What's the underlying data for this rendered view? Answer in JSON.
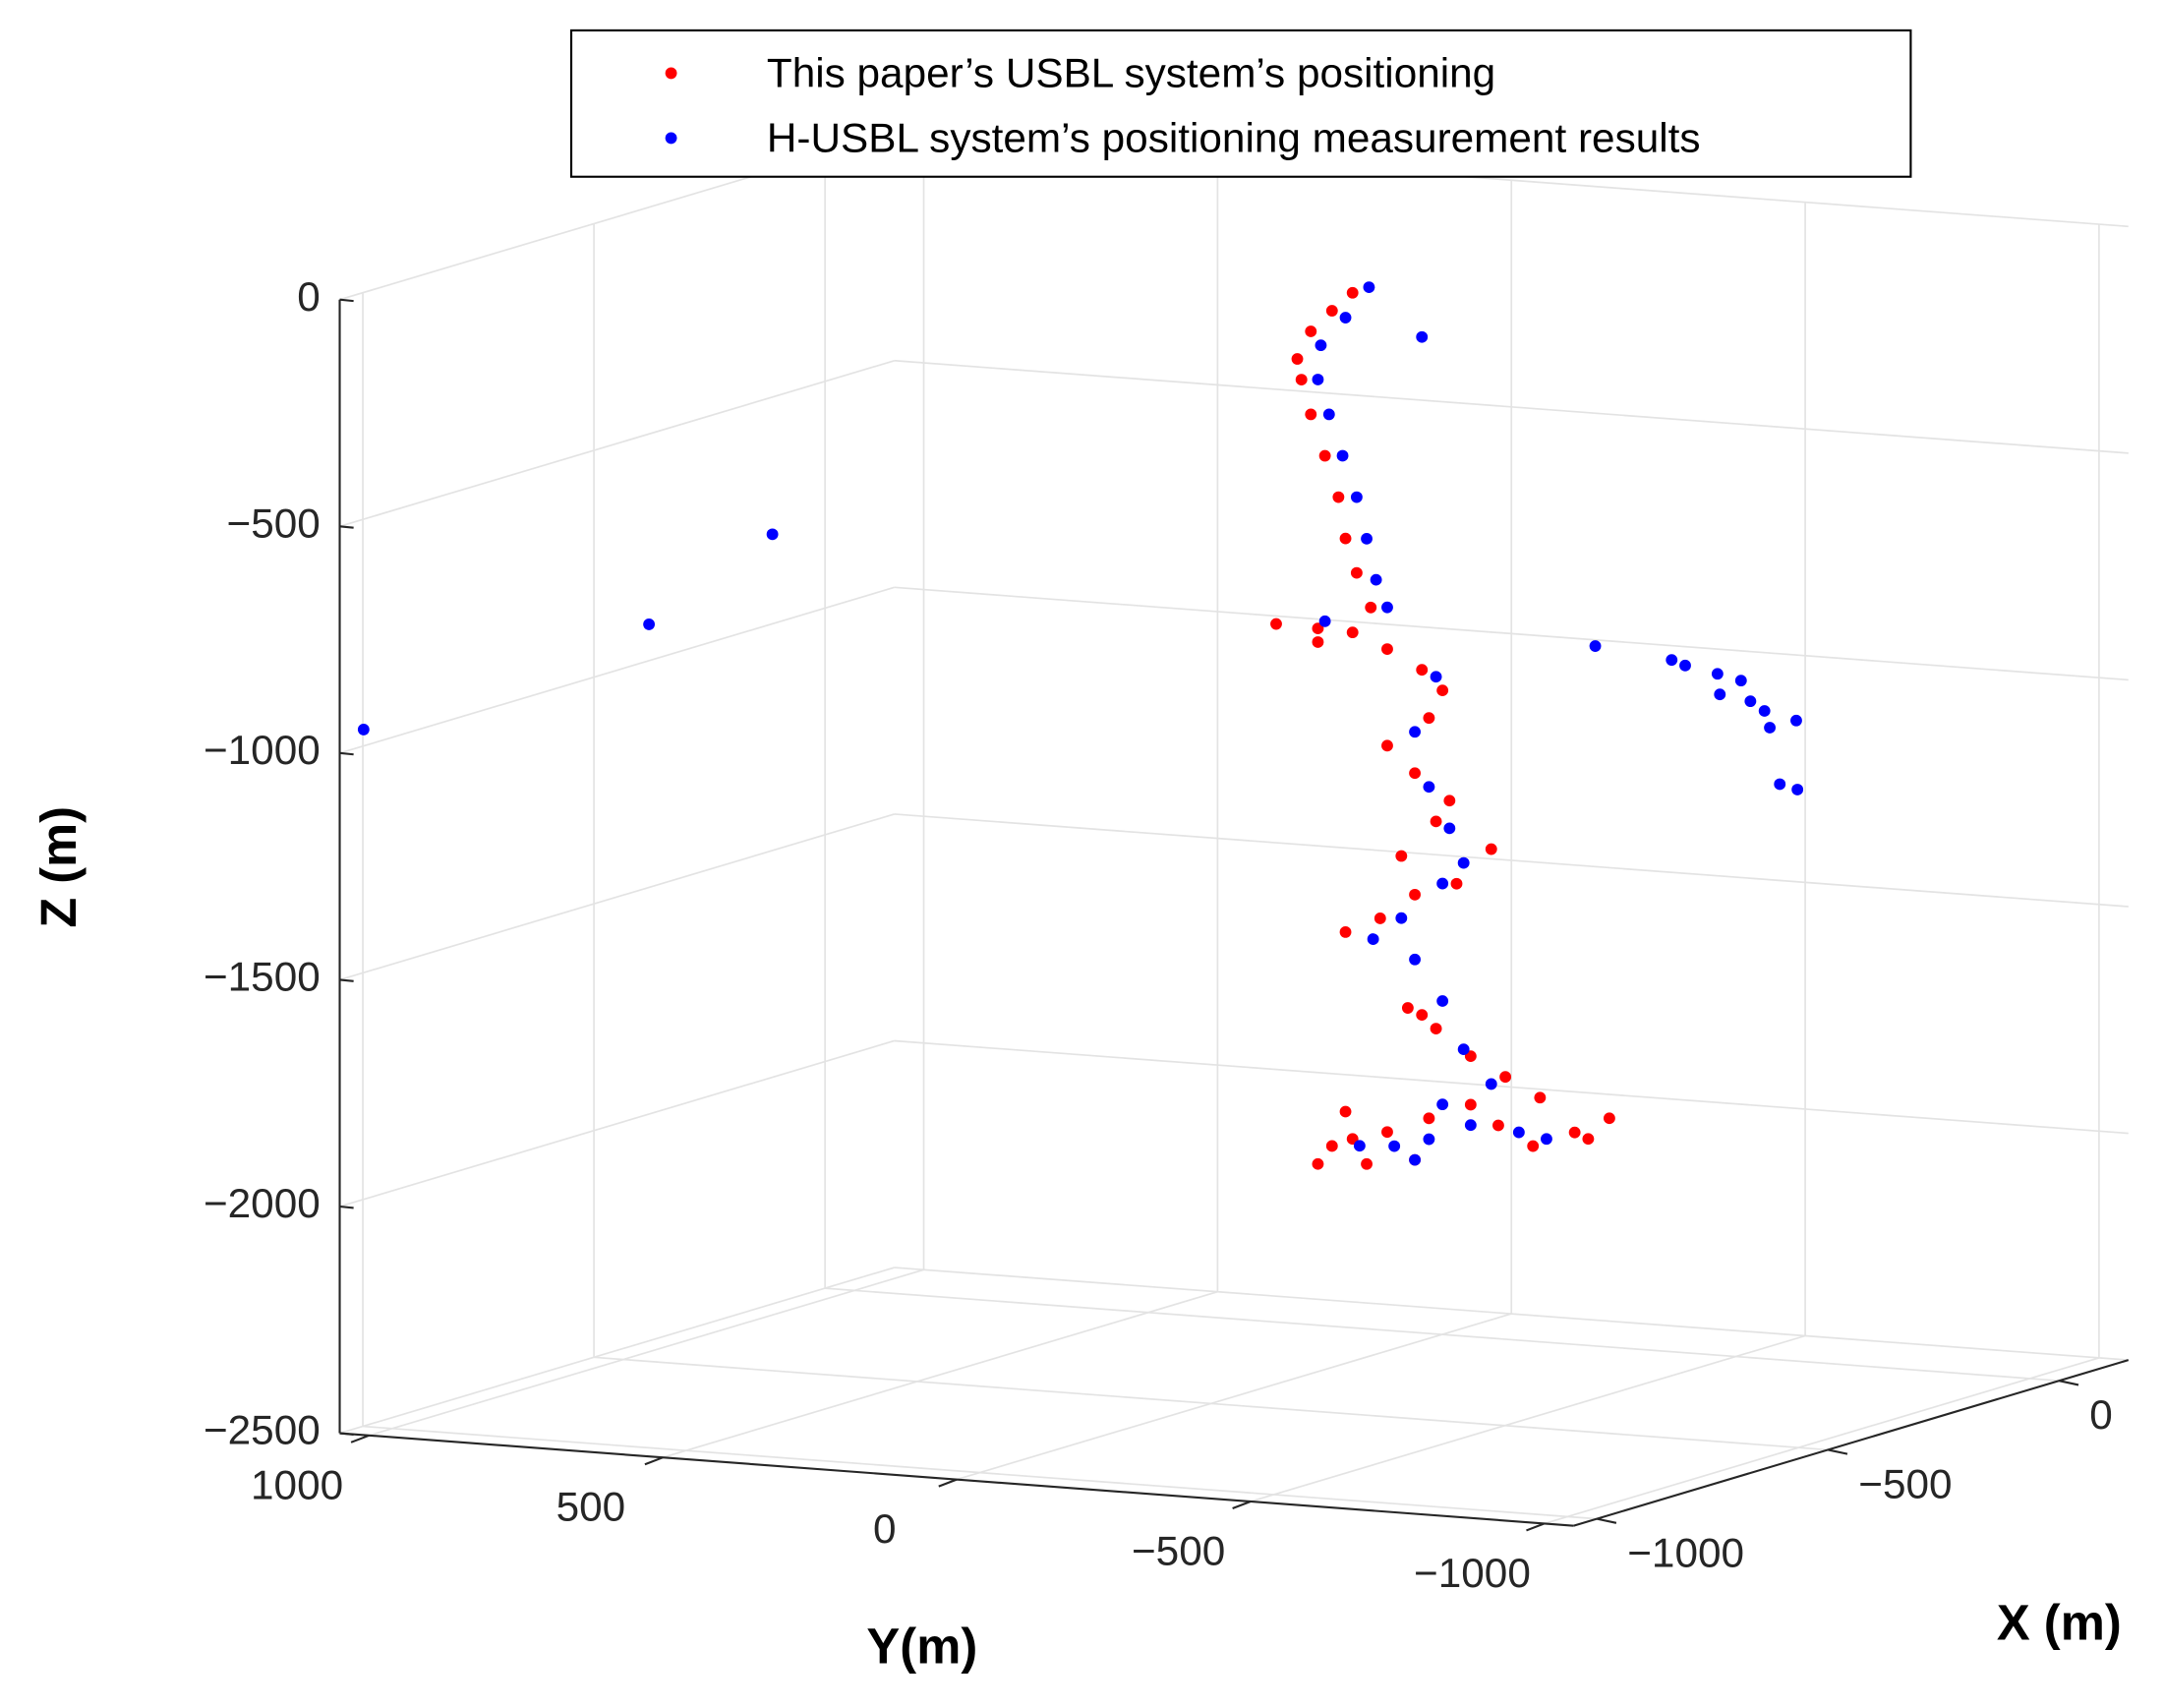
{
  "chart_data": {
    "type": "scatter3d",
    "xlabel": "X (m)",
    "ylabel": "Y(m)",
    "zlabel": "Z (m)",
    "xlim": [
      -1050,
      150
    ],
    "ylim": [
      -1050,
      1050
    ],
    "zlim": [
      -2500,
      0
    ],
    "xticks": [
      {
        "value": -1000,
        "label": "−1000"
      },
      {
        "value": -500,
        "label": "−500"
      },
      0
    ],
    "yticks": [
      {
        "value": -1000,
        "label": "−1000"
      },
      {
        "value": -500,
        "label": "−500"
      },
      0,
      500,
      1000
    ],
    "zticks": [
      {
        "value": -2500,
        "label": "−2500"
      },
      {
        "value": -2000,
        "label": "−2000"
      },
      {
        "value": -1500,
        "label": "−1500"
      },
      {
        "value": -1000,
        "label": "−1000"
      },
      {
        "value": -500,
        "label": "−500"
      },
      0
    ],
    "grid": true,
    "legend": "top",
    "series": [
      {
        "name": "This paper’s USBL system’s positioning",
        "color": "#ff0000",
        "x": [
          -500,
          -500,
          -500,
          -500,
          -500,
          -500,
          -500,
          -500,
          -500,
          -500,
          -500,
          -500,
          -500,
          -500,
          -500,
          -500,
          -500,
          -500,
          -500,
          -500,
          -500,
          -500,
          -500,
          -500,
          -500,
          -500,
          -500,
          -500,
          -500,
          -500,
          -500,
          -500,
          -500,
          -500,
          -500,
          -500,
          -500,
          -500,
          -500,
          -500,
          -500,
          -500,
          -500,
          -500,
          -500,
          -500,
          -500,
          -500,
          -500
        ],
        "y": [
          -241,
          -206,
          -170,
          -147,
          -154,
          -170,
          -194,
          -217,
          -229,
          -248,
          -272,
          -111,
          -182,
          -241,
          -300,
          -359,
          -394,
          -371,
          -300,
          -347,
          -406,
          -383,
          -477,
          -418,
          -347,
          -288,
          -229,
          -335,
          -383,
          -442,
          -501,
          -560,
          -678,
          -619,
          -548,
          -442,
          -371,
          -300,
          -229,
          -206,
          -182,
          -265,
          -347,
          -489,
          -642,
          -241,
          -324,
          -359,
          -182
        ],
        "z": [
          -27,
          -70,
          -119,
          -182,
          -227,
          -302,
          -391,
          -480,
          -570,
          -644,
          -718,
          -770,
          -773,
          -776,
          -807,
          -847,
          -889,
          -952,
          -1020,
          -1076,
          -1131,
          -1179,
          -1231,
          -1313,
          -1344,
          -1402,
          -1438,
          -1595,
          -1636,
          -1691,
          -1731,
          -1771,
          -1805,
          -1842,
          -1879,
          -1798,
          -1835,
          -1872,
          -1834,
          -1912,
          -1954,
          -1946,
          -1929,
          -1839,
          -1854,
          -1893,
          -1261,
          -1608,
          -803
        ]
      },
      {
        "name": "H-USBL system’s positioning measurement results",
        "color": "#0000ff",
        "x": [
          -500,
          -500,
          -500,
          -500,
          -500,
          -500,
          -500,
          -500,
          -500,
          -500,
          -500,
          -500,
          -500,
          -500,
          -500,
          -500,
          -500,
          -500,
          -500,
          -500,
          -500,
          -500,
          -500,
          -500,
          -500,
          -500,
          -500,
          -500,
          -500,
          -500,
          -500,
          -500,
          -500,
          -500,
          -500,
          -500,
          -500,
          -500,
          -500,
          -500,
          -500,
          -500,
          -500,
          -500,
          -1011,
          -1000,
          -1000
        ],
        "y": [
          -269,
          -229,
          -187,
          -182,
          -201,
          -224,
          -248,
          -265,
          -281,
          -300,
          -194,
          -383,
          -347,
          -371,
          -406,
          -430,
          -394,
          -324,
          -276,
          -347,
          -394,
          -430,
          -477,
          -524,
          -442,
          -371,
          -312,
          -253,
          -347,
          -394,
          -571,
          -359,
          -654,
          -784,
          -807,
          -862,
          -866,
          -902,
          -918,
          -942,
          -951,
          -996,
          -968,
          -998,
          1040,
          563,
          353
        ],
        "z": [
          -12,
          -83,
          -148,
          -224,
          -299,
          -388,
          -477,
          -567,
          -656,
          -715,
          -756,
          -860,
          -985,
          -1104,
          -1192,
          -1266,
          -1315,
          -1398,
          -1449,
          -1487,
          -1574,
          -1677,
          -1749,
          -1851,
          -1843,
          -1881,
          -1902,
          -1907,
          -1929,
          -1802,
          -1861,
          -113,
          -766,
          -784,
          -794,
          -807,
          -852,
          -818,
          -862,
          -881,
          -917,
          -897,
          -1040,
          -1049,
          -959,
          -684,
          -465
        ]
      }
    ]
  }
}
